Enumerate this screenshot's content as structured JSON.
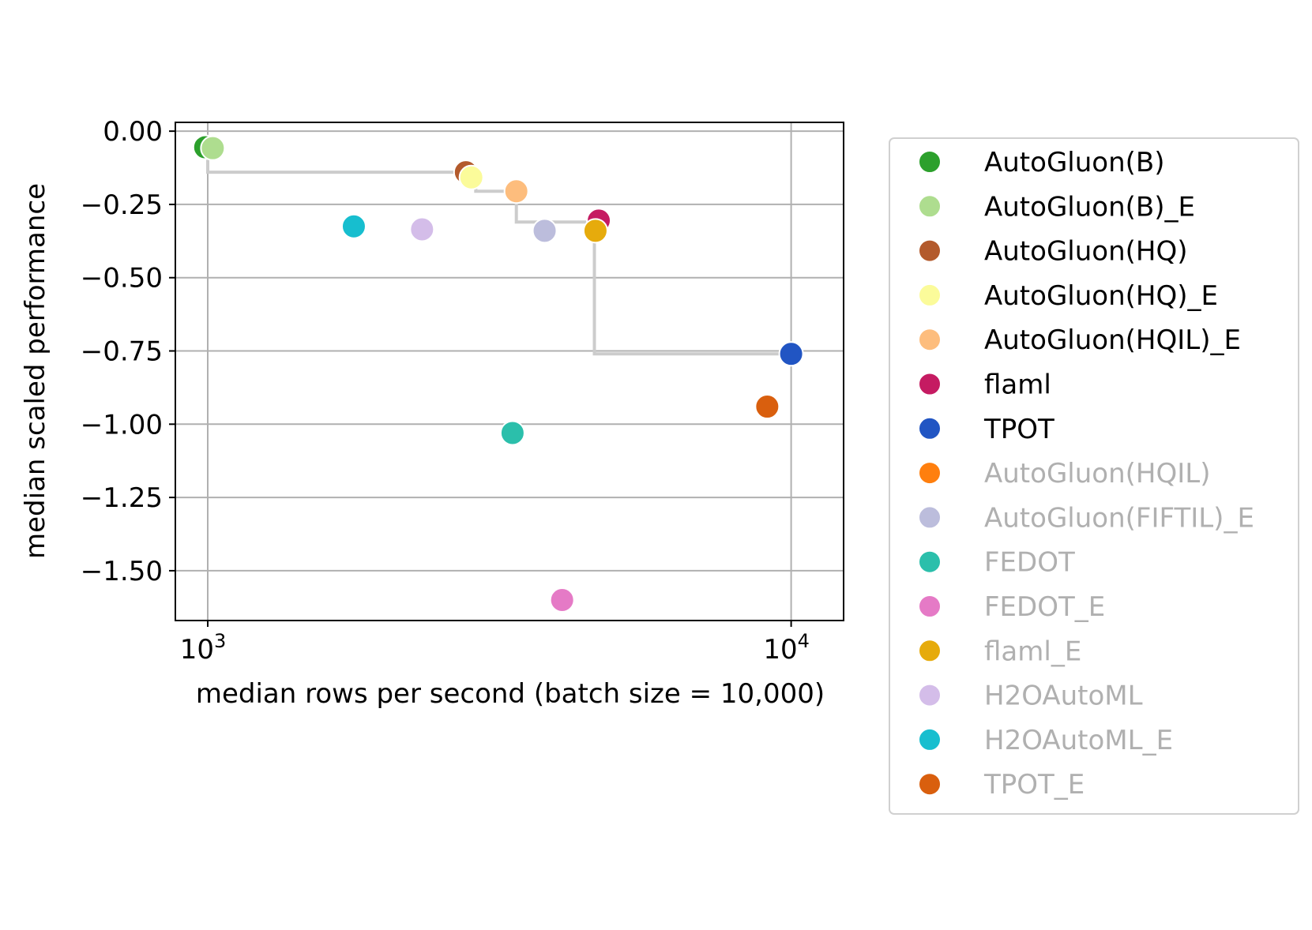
{
  "chart_data": {
    "type": "scatter",
    "title": "",
    "xlabel": "median rows per second (batch size = 10,000)",
    "ylabel": "median scaled performance",
    "xscale": "log",
    "xlim": [
      880,
      12300
    ],
    "ylim": [
      -1.67,
      0.03
    ],
    "x_ticks": [
      {
        "value": 1000,
        "base": "10",
        "exp": "3"
      },
      {
        "value": 10000,
        "base": "10",
        "exp": "4"
      }
    ],
    "y_ticks": [
      {
        "value": 0.0,
        "label": "0.00"
      },
      {
        "value": -0.25,
        "label": "−0.25"
      },
      {
        "value": -0.5,
        "label": "−0.50"
      },
      {
        "value": -0.75,
        "label": "−0.75"
      },
      {
        "value": -1.0,
        "label": "−1.00"
      },
      {
        "value": -1.25,
        "label": "−1.25"
      },
      {
        "value": -1.5,
        "label": "−1.50"
      }
    ],
    "grid": true,
    "legend_position": "outside-right",
    "pareto_frontier": [
      [
        1000,
        -0.055
      ],
      [
        1000,
        -0.14
      ],
      [
        2880,
        -0.14
      ],
      [
        2880,
        -0.205
      ],
      [
        3380,
        -0.205
      ],
      [
        3380,
        -0.31
      ],
      [
        4600,
        -0.31
      ],
      [
        4600,
        -0.76
      ],
      [
        10000,
        -0.76
      ]
    ],
    "series": [
      {
        "name": "AutoGluon(B)",
        "color": "#2ca02c",
        "x": 990,
        "y": -0.055,
        "highlighted": true
      },
      {
        "name": "AutoGluon(B)_E",
        "color": "#aedd8f",
        "x": 1020,
        "y": -0.058,
        "highlighted": true
      },
      {
        "name": "AutoGluon(HQ)",
        "color": "#b35a2c",
        "x": 2770,
        "y": -0.14,
        "highlighted": true
      },
      {
        "name": "AutoGluon(HQ)_E",
        "color": "#fbfb9a",
        "x": 2830,
        "y": -0.158,
        "highlighted": true
      },
      {
        "name": "AutoGluon(HQIL)_E",
        "color": "#fdbd7d",
        "x": 3380,
        "y": -0.205,
        "highlighted": true
      },
      {
        "name": "flaml",
        "color": "#c51b62",
        "x": 4680,
        "y": -0.305,
        "highlighted": true
      },
      {
        "name": "TPOT",
        "color": "#2155c3",
        "x": 10000,
        "y": -0.76,
        "highlighted": true
      },
      {
        "name": "AutoGluon(HQIL)",
        "color": "#ff7f0e",
        "x": 9100,
        "y": -0.94,
        "highlighted": false
      },
      {
        "name": "AutoGluon(FIFTIL)_E",
        "color": "#bcbddc",
        "x": 3780,
        "y": -0.34,
        "highlighted": false
      },
      {
        "name": "FEDOT",
        "color": "#2bbfab",
        "x": 3330,
        "y": -1.03,
        "highlighted": false
      },
      {
        "name": "FEDOT_E",
        "color": "#e57ac6",
        "x": 4050,
        "y": -1.6,
        "highlighted": false
      },
      {
        "name": "flaml_E",
        "color": "#e6ab0c",
        "x": 4620,
        "y": -0.34,
        "highlighted": false
      },
      {
        "name": "H2OAutoML",
        "color": "#d4bde9",
        "x": 2330,
        "y": -0.335,
        "highlighted": false
      },
      {
        "name": "H2OAutoML_E",
        "color": "#17becf",
        "x": 1780,
        "y": -0.325,
        "highlighted": false
      },
      {
        "name": "TPOT_E",
        "color": "#d95f0e",
        "x": 9100,
        "y": -0.94,
        "highlighted": false
      }
    ],
    "legend_order": [
      "AutoGluon(B)",
      "AutoGluon(B)_E",
      "AutoGluon(HQ)",
      "AutoGluon(HQ)_E",
      "AutoGluon(HQIL)_E",
      "flaml",
      "TPOT",
      "AutoGluon(HQIL)",
      "AutoGluon(FIFTIL)_E",
      "FEDOT",
      "FEDOT_E",
      "flaml_E",
      "H2OAutoML",
      "H2OAutoML_E",
      "TPOT_E"
    ],
    "draw_order": [
      "AutoGluon(B)",
      "AutoGluon(B)_E",
      "AutoGluon(HQ)",
      "AutoGluon(HQ)_E",
      "AutoGluon(HQIL)_E",
      "flaml",
      "TPOT",
      "AutoGluon(FIFTIL)_E",
      "FEDOT",
      "FEDOT_E",
      "H2OAutoML",
      "H2OAutoML_E",
      "AutoGluon(HQIL)",
      "TPOT_E",
      "flaml_E"
    ],
    "legend_text_color": "#000000",
    "legend_dim_text_color": "#b0b0b0",
    "grid_color": "#b0b0b0",
    "frontier_color": "#cccccc"
  }
}
